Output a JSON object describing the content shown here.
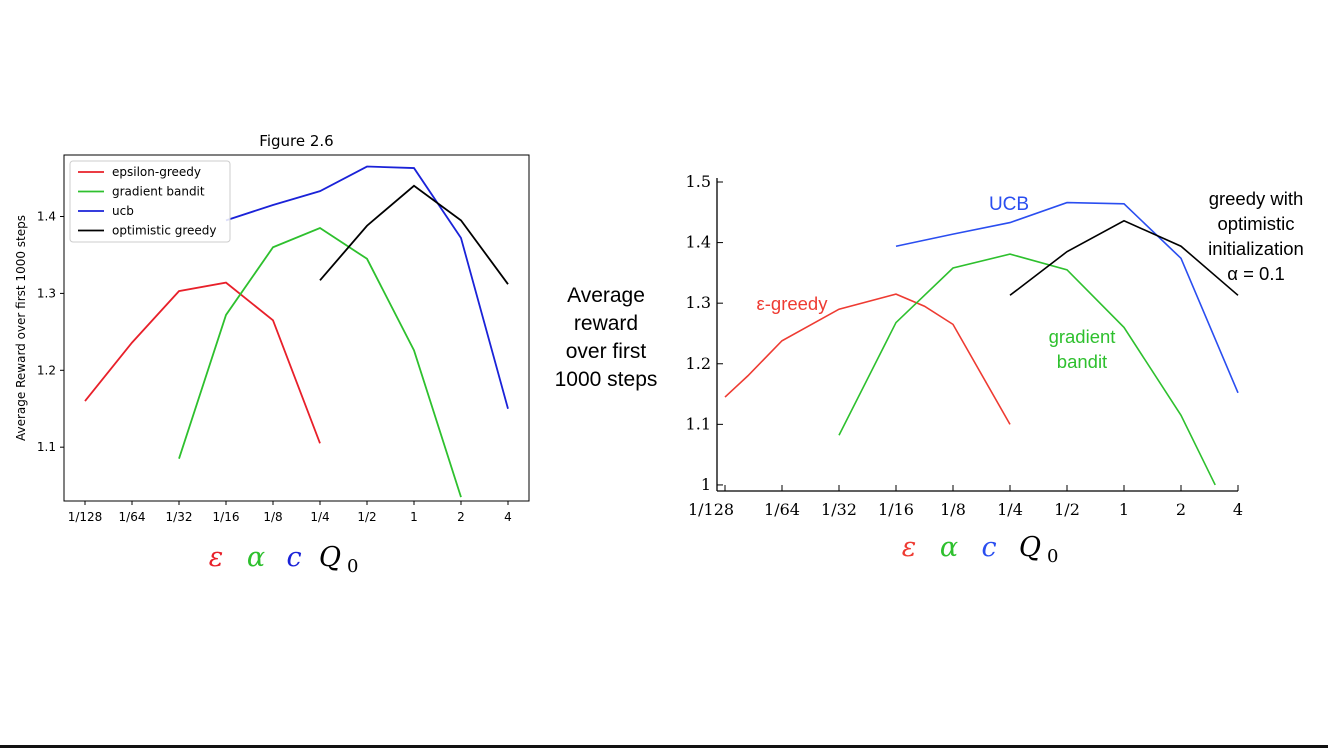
{
  "center_label": [
    "Average",
    "reward",
    "over first",
    "1000 steps"
  ],
  "chart_data": [
    {
      "type": "line",
      "title": "Figure 2.6",
      "xlabel": "",
      "ylabel": "Average Reward over first 1000 steps",
      "x_ticks": [
        "1/128",
        "1/64",
        "1/32",
        "1/16",
        "1/8",
        "1/4",
        "1/2",
        "1",
        "2",
        "4"
      ],
      "y_ticks": [
        "1.1",
        "1.2",
        "1.3",
        "1.4"
      ],
      "ylim": [
        1.03,
        1.48
      ],
      "grid": false,
      "legend": "top-left",
      "axis_symbols": [
        {
          "text": "ε",
          "color": "#e8202a"
        },
        {
          "text": "α",
          "color": "#2ec02e"
        },
        {
          "text": "c",
          "color": "#1a22d8"
        },
        {
          "text": "Q",
          "sub": "0",
          "color": "#000000"
        }
      ],
      "series": [
        {
          "name": "epsilon-greedy",
          "color": "#e8202a",
          "x": [
            "1/128",
            "1/64",
            "1/32",
            "1/16",
            "1/8",
            "1/4"
          ],
          "y": [
            1.16,
            1.236,
            1.303,
            1.314,
            1.265,
            1.105
          ]
        },
        {
          "name": "gradient bandit",
          "color": "#2ec02e",
          "x": [
            "1/32",
            "1/16",
            "1/8",
            "1/4",
            "1/2",
            "1",
            "2"
          ],
          "y": [
            1.085,
            1.272,
            1.36,
            1.385,
            1.345,
            1.226,
            1.035
          ]
        },
        {
          "name": "ucb",
          "color": "#1a22d8",
          "x": [
            "1/16",
            "1/8",
            "1/4",
            "1/2",
            "1",
            "2",
            "4"
          ],
          "y": [
            1.395,
            1.415,
            1.433,
            1.465,
            1.463,
            1.372,
            1.15
          ]
        },
        {
          "name": "optimistic greedy",
          "color": "#000000",
          "x": [
            "1/4",
            "1/2",
            "1",
            "2",
            "4"
          ],
          "y": [
            1.317,
            1.388,
            1.44,
            1.395,
            1.312
          ]
        }
      ]
    },
    {
      "type": "line",
      "title": "",
      "xlabel": "",
      "ylabel": "",
      "x_ticks": [
        "1/128",
        "1/64",
        "1/32",
        "1/16",
        "1/8",
        "1/4",
        "1/2",
        "1",
        "2",
        "4"
      ],
      "y_ticks": [
        "1",
        "1.1",
        "1.2",
        "1.3",
        "1.4",
        "1.5"
      ],
      "ylim": [
        0.99,
        1.5
      ],
      "grid": false,
      "legend": "none",
      "axis_symbols": [
        {
          "text": "ε",
          "color": "#ee3b32"
        },
        {
          "text": "α",
          "color": "#2ec02e"
        },
        {
          "text": "c",
          "color": "#2a4ef0"
        },
        {
          "text": "Q",
          "sub": "0",
          "color": "#000000"
        }
      ],
      "series": [
        {
          "color": "#ee3b32",
          "x": [
            0,
            0.4,
            1,
            2,
            3,
            3.5,
            4,
            5
          ],
          "y": [
            1.145,
            1.18,
            1.238,
            1.29,
            1.315,
            1.295,
            1.265,
            1.1
          ]
        },
        {
          "color": "#2ec02e",
          "x": [
            2,
            3,
            4,
            5,
            6,
            7,
            8,
            8.6
          ],
          "y": [
            1.082,
            1.268,
            1.358,
            1.381,
            1.355,
            1.26,
            1.115,
            1.0
          ]
        },
        {
          "color": "#2a4ef0",
          "x": [
            3,
            4,
            5,
            6,
            7,
            8,
            9
          ],
          "y": [
            1.394,
            1.414,
            1.433,
            1.466,
            1.464,
            1.374,
            1.152
          ]
        },
        {
          "color": "#000000",
          "x": [
            5,
            6,
            7,
            8,
            9
          ],
          "y": [
            1.313,
            1.385,
            1.436,
            1.394,
            1.313
          ]
        }
      ],
      "annotations": [
        {
          "lines": [
            "UCB"
          ],
          "color": "#2a4ef0"
        },
        {
          "lines": [
            "greedy with",
            "optimistic",
            "initialization",
            "α = 0.1"
          ],
          "color": "#000000"
        },
        {
          "lines": [
            "ε-greedy"
          ],
          "color": "#ee3b32"
        },
        {
          "lines": [
            "gradient",
            "bandit"
          ],
          "color": "#2ec02e"
        }
      ]
    }
  ]
}
